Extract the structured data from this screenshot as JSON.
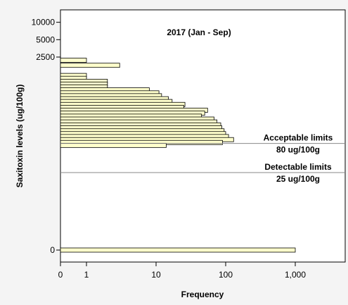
{
  "chart_data": {
    "type": "bar",
    "orientation": "horizontal",
    "title": "2017 (Jan - Sep)",
    "xlabel": "Frequency",
    "ylabel": "Saxitoxin levels (ug/100g)",
    "x_scale": "log",
    "x_ticks": [
      {
        "value": 0,
        "label": "0"
      },
      {
        "value": 1,
        "label": "1"
      },
      {
        "value": 10,
        "label": "10"
      },
      {
        "value": 100,
        "label": "100"
      },
      {
        "value": 1000,
        "label": "1,000"
      }
    ],
    "y_scale": "log",
    "y_ticks": [
      {
        "value": 0,
        "label": "0"
      },
      {
        "value": 2500,
        "label": "2500"
      },
      {
        "value": 5000,
        "label": "5000"
      },
      {
        "value": 10000,
        "label": "10000"
      }
    ],
    "bar_color": "#ffffcc",
    "bins": [
      {
        "level": 2200,
        "frequency": 1
      },
      {
        "level": 1800,
        "frequency": 3
      },
      {
        "level": 1200,
        "frequency": 1
      },
      {
        "level": 1070,
        "frequency": 1
      },
      {
        "level": 950,
        "frequency": 2
      },
      {
        "level": 850,
        "frequency": 2
      },
      {
        "level": 760,
        "frequency": 2
      },
      {
        "level": 675,
        "frequency": 8
      },
      {
        "level": 600,
        "frequency": 11
      },
      {
        "level": 535,
        "frequency": 12
      },
      {
        "level": 475,
        "frequency": 15
      },
      {
        "level": 425,
        "frequency": 17
      },
      {
        "level": 378,
        "frequency": 26
      },
      {
        "level": 336,
        "frequency": 25
      },
      {
        "level": 300,
        "frequency": 55
      },
      {
        "level": 267,
        "frequency": 50
      },
      {
        "level": 237,
        "frequency": 45
      },
      {
        "level": 211,
        "frequency": 68
      },
      {
        "level": 188,
        "frequency": 75
      },
      {
        "level": 167,
        "frequency": 85
      },
      {
        "level": 149,
        "frequency": 88
      },
      {
        "level": 132,
        "frequency": 95
      },
      {
        "level": 118,
        "frequency": 100
      },
      {
        "level": 105,
        "frequency": 110
      },
      {
        "level": 93,
        "frequency": 130
      },
      {
        "level": 83,
        "frequency": 90
      },
      {
        "level": 74,
        "frequency": 14
      },
      {
        "level": 0,
        "frequency": 1000
      }
    ],
    "reference_lines": [
      {
        "value": 80,
        "label_line1": "Acceptable limits",
        "label_line2": "80 ug/100g"
      },
      {
        "value": 25,
        "label_line1": "Detectable limits",
        "label_line2": "25 ug/100g"
      }
    ],
    "grid": false,
    "legend": "none"
  }
}
